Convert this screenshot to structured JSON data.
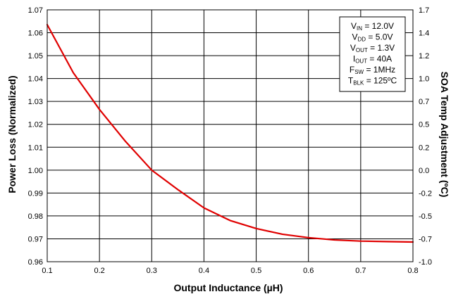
{
  "chart_data": {
    "type": "line",
    "title": "",
    "xlabel": "Output Inductance (µH)",
    "ylabel": "Power Loss (Normalized)",
    "y2label": "SOA Temp Adjustment (ºC)",
    "xlim": [
      0.1,
      0.8
    ],
    "ylim": [
      0.96,
      1.07
    ],
    "xticks": [
      "0.1",
      "0.2",
      "0.3",
      "0.4",
      "0.5",
      "0.6",
      "0.7",
      "0.8"
    ],
    "yticks": [
      "0.96",
      "0.97",
      "0.98",
      "0.99",
      "1.00",
      "1.01",
      "1.02",
      "1.03",
      "1.04",
      "1.05",
      "1.06",
      "1.07"
    ],
    "y2ticks": [
      "-1.0",
      "-0.7",
      "-0.5",
      "-0.2",
      "0.0",
      "0.2",
      "0.5",
      "0.7",
      "1.0",
      "1.2",
      "1.4",
      "1.7"
    ],
    "grid": true,
    "colors": {
      "series": "#e00000",
      "grid": "#000000"
    },
    "series": [
      {
        "x": [
          0.1,
          0.15,
          0.2,
          0.25,
          0.3,
          0.35,
          0.4,
          0.45,
          0.5,
          0.55,
          0.6,
          0.65,
          0.7,
          0.75,
          0.8
        ],
        "values": [
          1.0635,
          1.0425,
          1.0265,
          1.0125,
          1.0,
          0.9915,
          0.9835,
          0.978,
          0.9745,
          0.972,
          0.9705,
          0.9695,
          0.969,
          0.9688,
          0.9686
        ]
      }
    ],
    "legend_box": {
      "position": "top-right",
      "lines": [
        {
          "main": "V",
          "sub": "IN",
          "rest": " = 12.0V"
        },
        {
          "main": "V",
          "sub": "DD",
          "rest": " = 5.0V"
        },
        {
          "main": "V",
          "sub": "OUT",
          "rest": " = 1.3V"
        },
        {
          "main": "I",
          "sub": "OUT",
          "rest": " = 40A"
        },
        {
          "main": "F",
          "sub": "SW",
          "rest": " = 1MHz"
        },
        {
          "main": "T",
          "sub": "BLK",
          "rest": " = 125ºC"
        }
      ]
    }
  }
}
